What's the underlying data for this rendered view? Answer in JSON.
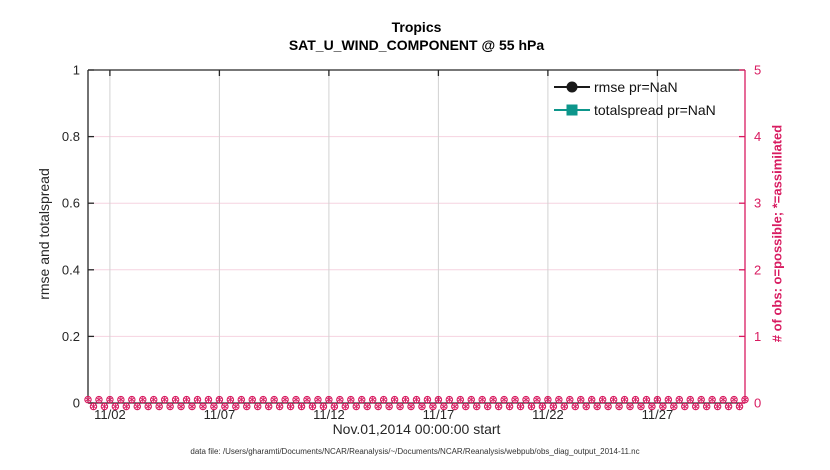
{
  "figure": {
    "annotation": "data file: /Users/gharamti/Documents/NCAR/Reanalysis/~/Documents/NCAR/Reanalysis/webpub/obs_diag_output_2014-11.nc"
  },
  "legend": {
    "items": [
      {
        "label": "rmse pr=NaN",
        "marker": "filled-circle",
        "color": "#1a1a1a",
        "line_color": "#1a1a1a"
      },
      {
        "label": "totalspread pr=NaN",
        "marker": "filled-square",
        "color": "#0d968b",
        "line_color": "#0d968b"
      }
    ]
  },
  "colors": {
    "background": "#ffffff",
    "axis_left": "#262626",
    "axis_right": "#d81b60",
    "tick_label_left": "#262626",
    "tick_label_right": "#d81b60",
    "grid_vertical": "#d2d2d2",
    "grid_horizontal": "#f6d3e0",
    "obs_markers": "#d81b60"
  },
  "chart_data": {
    "type": "line",
    "title": "Tropics",
    "subtitle": "SAT_U_WIND_COMPONENT @ 55 hPa",
    "xlabel": "Nov.01,2014 00:00:00 start",
    "ylabel_left": "rmse and totalspread",
    "ylabel_right": "# of obs: o=possible; *=assimilated",
    "x_axis": {
      "unit": "date (Nov 2014)",
      "range_days": [
        1,
        31
      ],
      "tick_days": [
        2,
        7,
        12,
        17,
        22,
        27
      ],
      "tick_labels": [
        "11/02",
        "11/07",
        "11/12",
        "11/17",
        "11/22",
        "11/27"
      ]
    },
    "y_axis_left": {
      "range": [
        0,
        1
      ],
      "ticks": [
        0,
        0.2,
        0.4,
        0.6,
        0.8,
        1
      ],
      "tick_labels": [
        "0",
        "0.2",
        "0.4",
        "0.6",
        "0.8",
        "1"
      ]
    },
    "y_axis_right": {
      "range": [
        0,
        5
      ],
      "ticks": [
        0,
        1,
        2,
        3,
        4,
        5
      ],
      "tick_labels": [
        "0",
        "1",
        "2",
        "3",
        "4",
        "5"
      ]
    },
    "grid": true,
    "legend_position": "upper-right-inside",
    "series": [
      {
        "name": "rmse pr=NaN",
        "axis": "left",
        "marker": "filled-circle",
        "color": "#1a1a1a",
        "values": "NaN"
      },
      {
        "name": "totalspread pr=NaN",
        "axis": "left",
        "marker": "filled-square",
        "color": "#0d968b",
        "values": "NaN"
      },
      {
        "name": "# of obs possible (o)",
        "axis": "right",
        "marker": "o",
        "color": "#d81b60",
        "constant_value": 0,
        "samples_per_day": 4
      },
      {
        "name": "# of obs assimilated (*)",
        "axis": "right",
        "marker": "*",
        "color": "#d81b60",
        "constant_value": 0,
        "samples_per_day": 4
      }
    ]
  }
}
